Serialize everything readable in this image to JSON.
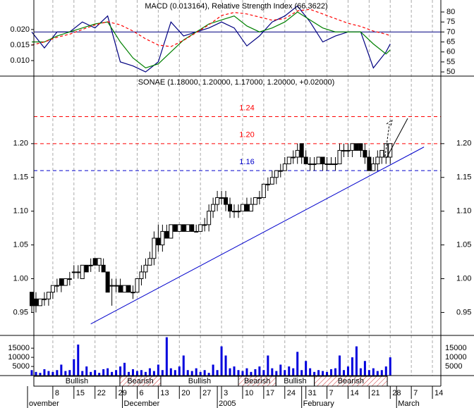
{
  "chart_data": [
    {
      "type": "line",
      "title": "MACD (0.013164), Relative Strength Index (66.3622)",
      "x": [
        0,
        3,
        6,
        9,
        12,
        15,
        18,
        21,
        24,
        27,
        30,
        33,
        36,
        39,
        42,
        45,
        48,
        51,
        54,
        57,
        60,
        63,
        66,
        69,
        72,
        75,
        78,
        81,
        84,
        85
      ],
      "ylim": [
        0.005,
        0.0295
      ],
      "yticks": [
        {
          "value": 0.01,
          "label": "0.010"
        },
        {
          "value": 0.015,
          "label": "0.015"
        },
        {
          "value": 0.02,
          "label": "0.020"
        }
      ],
      "y2lim": [
        47.9,
        86
      ],
      "y2ticks": [
        50,
        55,
        60,
        65,
        70,
        75,
        80
      ],
      "hline": {
        "value": 70,
        "axis": "y2",
        "color": "#000080"
      },
      "series": [
        {
          "color": "#000080",
          "axis": "y2",
          "dash": false,
          "values": [
            70,
            62,
            70,
            70,
            75,
            72,
            78,
            55,
            53,
            50,
            55,
            75,
            68,
            70,
            72,
            75,
            72,
            63,
            68,
            75,
            78,
            83,
            75,
            65,
            68,
            70,
            70,
            52,
            60,
            64
          ]
        },
        {
          "color": "#008000",
          "axis": "y2",
          "dash": false,
          "values": [
            65,
            65,
            68,
            70,
            72,
            74,
            75,
            65,
            57,
            52,
            54,
            60,
            66,
            70,
            74,
            76,
            78,
            73,
            70,
            72,
            75,
            80,
            76,
            72,
            70,
            70,
            70,
            64,
            59,
            61
          ]
        },
        {
          "color": "#ff0000",
          "axis": "y",
          "dash": true,
          "values": [
            0.015,
            0.016,
            0.0175,
            0.0185,
            0.02,
            0.0215,
            0.0225,
            0.0215,
            0.0195,
            0.017,
            0.015,
            0.0145,
            0.0165,
            0.019,
            0.0215,
            0.0245,
            0.0255,
            0.025,
            0.024,
            0.023,
            0.0235,
            0.026,
            0.0265,
            0.025,
            0.0235,
            0.022,
            0.021,
            0.0195,
            0.0185,
            0.018
          ]
        }
      ]
    },
    {
      "type": "candlestick",
      "title": "SONAE (1.18000, 1.20000, 1.17000, 1.20000, +0.02000)",
      "xlim": [
        0,
        97
      ],
      "xticks": [
        {
          "value": 5,
          "label": "8"
        },
        {
          "value": 10,
          "label": "15"
        },
        {
          "value": 15,
          "label": "22"
        },
        {
          "value": 20,
          "label": "29"
        },
        {
          "value": 25,
          "label": "6"
        },
        {
          "value": 30,
          "label": "13"
        },
        {
          "value": 35,
          "label": "20"
        },
        {
          "value": 40,
          "label": "27"
        },
        {
          "value": 45,
          "label": "3"
        },
        {
          "value": 50,
          "label": "10"
        },
        {
          "value": 55,
          "label": "17"
        },
        {
          "value": 60,
          "label": "24"
        },
        {
          "value": 65,
          "label": "31"
        },
        {
          "value": 70,
          "label": "7"
        },
        {
          "value": 75,
          "label": "14"
        },
        {
          "value": 80,
          "label": "21"
        },
        {
          "value": 85,
          "label": "28"
        },
        {
          "value": 90,
          "label": "7"
        },
        {
          "value": 95,
          "label": "14"
        }
      ],
      "x_groups": [
        {
          "value": -1,
          "label": "ovember"
        },
        {
          "value": 21.5,
          "label": "December"
        },
        {
          "value": 44,
          "label": "2005"
        },
        {
          "value": 64,
          "label": "February"
        },
        {
          "value": 86.5,
          "label": "March"
        }
      ],
      "ylim": [
        0.916,
        1.3
      ],
      "yticks": [
        0.95,
        {
          "value": 1.0,
          "label": "1.00"
        },
        1.05,
        {
          "value": 1.1,
          "label": "1.10"
        },
        1.15,
        {
          "value": 1.2,
          "label": "1.20"
        }
      ],
      "levels": [
        {
          "value": 1.24,
          "label": "1.24",
          "color": "#ff0000"
        },
        {
          "value": 1.2,
          "label": "1.20",
          "color": "#ff0000"
        },
        {
          "value": 1.16,
          "label": "1.16",
          "color": "#0000cc"
        }
      ],
      "trendline": {
        "x": [
          14,
          93
        ],
        "y": [
          0.933,
          1.195
        ],
        "color": "#0000cc"
      },
      "signals": [
        {
          "label": "Bullish",
          "start": 0.5,
          "end": 20.9,
          "color": "#ffffff"
        },
        {
          "label": "Bearish",
          "start": 20.9,
          "end": 30.6,
          "color": "#d03030"
        },
        {
          "label": "Bullish",
          "start": 30.6,
          "end": 49,
          "color": "#ffffff"
        },
        {
          "label": "Bearish",
          "start": 49,
          "end": 57.9,
          "color": "#d03030"
        },
        {
          "label": "Bullish",
          "start": 57.9,
          "end": 67,
          "color": "#ffffff"
        },
        {
          "label": "Bearish",
          "start": 67,
          "end": 84.3,
          "color": "#d03030"
        }
      ],
      "ohlc": [
        [
          0.98,
          0.98,
          0.95,
          0.96
        ],
        [
          0.97,
          0.98,
          0.95,
          0.96
        ],
        [
          0.96,
          0.97,
          0.96,
          0.97
        ],
        [
          0.97,
          0.98,
          0.96,
          0.97
        ],
        [
          0.97,
          0.98,
          0.96,
          0.98
        ],
        [
          0.98,
          0.99,
          0.97,
          0.99
        ],
        [
          0.99,
          1.0,
          0.98,
          0.99
        ],
        [
          1.0,
          1.0,
          0.98,
          0.99
        ],
        [
          0.99,
          1.0,
          0.99,
          1.0
        ],
        [
          1.0,
          1.01,
          0.99,
          1.0
        ],
        [
          1.01,
          1.02,
          1.0,
          1.01
        ],
        [
          1.01,
          1.02,
          1.0,
          1.01
        ],
        [
          1.0,
          1.02,
          1.0,
          1.02
        ],
        [
          1.02,
          1.02,
          1.01,
          1.01
        ],
        [
          1.02,
          1.03,
          1.01,
          1.02
        ],
        [
          1.03,
          1.03,
          1.02,
          1.02
        ],
        [
          1.02,
          1.03,
          1.01,
          1.03
        ],
        [
          1.02,
          1.03,
          1.01,
          1.01
        ],
        [
          1.01,
          1.01,
          0.98,
          0.98
        ],
        [
          0.99,
          1.0,
          0.96,
          0.99
        ],
        [
          0.99,
          1.0,
          0.98,
          0.99
        ],
        [
          0.99,
          1.0,
          0.98,
          0.98
        ],
        [
          0.98,
          0.99,
          0.98,
          0.99
        ],
        [
          0.99,
          0.99,
          0.98,
          0.98
        ],
        [
          0.98,
          0.99,
          0.97,
          0.98
        ],
        [
          0.98,
          1.0,
          0.98,
          1.0
        ],
        [
          1.0,
          1.02,
          0.99,
          1.01
        ],
        [
          1.01,
          1.03,
          1.0,
          1.02
        ],
        [
          1.02,
          1.04,
          1.02,
          1.03
        ],
        [
          1.03,
          1.07,
          1.02,
          1.06
        ],
        [
          1.06,
          1.08,
          1.04,
          1.05
        ],
        [
          1.05,
          1.08,
          1.04,
          1.07
        ],
        [
          1.07,
          1.08,
          1.06,
          1.06
        ],
        [
          1.06,
          1.08,
          1.06,
          1.08
        ],
        [
          1.08,
          1.08,
          1.07,
          1.07
        ],
        [
          1.07,
          1.08,
          1.07,
          1.08
        ],
        [
          1.08,
          1.08,
          1.07,
          1.07
        ],
        [
          1.07,
          1.08,
          1.07,
          1.08
        ],
        [
          1.08,
          1.08,
          1.07,
          1.07
        ],
        [
          1.07,
          1.08,
          1.07,
          1.07
        ],
        [
          1.07,
          1.08,
          1.07,
          1.08
        ],
        [
          1.08,
          1.09,
          1.07,
          1.08
        ],
        [
          1.08,
          1.11,
          1.07,
          1.1
        ],
        [
          1.1,
          1.12,
          1.09,
          1.11
        ],
        [
          1.11,
          1.13,
          1.1,
          1.12
        ],
        [
          1.12,
          1.13,
          1.11,
          1.12
        ],
        [
          1.12,
          1.13,
          1.1,
          1.11
        ],
        [
          1.11,
          1.12,
          1.09,
          1.1
        ],
        [
          1.1,
          1.11,
          1.09,
          1.1
        ],
        [
          1.1,
          1.11,
          1.09,
          1.1
        ],
        [
          1.1,
          1.11,
          1.1,
          1.11
        ],
        [
          1.11,
          1.12,
          1.1,
          1.1
        ],
        [
          1.1,
          1.12,
          1.1,
          1.11
        ],
        [
          1.11,
          1.12,
          1.11,
          1.12
        ],
        [
          1.12,
          1.13,
          1.11,
          1.12
        ],
        [
          1.12,
          1.14,
          1.12,
          1.14
        ],
        [
          1.14,
          1.15,
          1.13,
          1.14
        ],
        [
          1.14,
          1.16,
          1.14,
          1.15
        ],
        [
          1.15,
          1.16,
          1.14,
          1.16
        ],
        [
          1.16,
          1.17,
          1.15,
          1.16
        ],
        [
          1.16,
          1.18,
          1.16,
          1.17
        ],
        [
          1.17,
          1.18,
          1.17,
          1.18
        ],
        [
          1.18,
          1.19,
          1.17,
          1.18
        ],
        [
          1.18,
          1.2,
          1.17,
          1.19
        ],
        [
          1.2,
          1.2,
          1.17,
          1.18
        ],
        [
          1.18,
          1.19,
          1.17,
          1.17
        ],
        [
          1.17,
          1.18,
          1.16,
          1.17
        ],
        [
          1.17,
          1.18,
          1.16,
          1.17
        ],
        [
          1.17,
          1.18,
          1.17,
          1.18
        ],
        [
          1.18,
          1.18,
          1.16,
          1.17
        ],
        [
          1.17,
          1.18,
          1.16,
          1.17
        ],
        [
          1.17,
          1.18,
          1.17,
          1.17
        ],
        [
          1.17,
          1.18,
          1.16,
          1.17
        ],
        [
          1.17,
          1.2,
          1.17,
          1.19
        ],
        [
          1.19,
          1.2,
          1.18,
          1.19
        ],
        [
          1.19,
          1.2,
          1.18,
          1.19
        ],
        [
          1.19,
          1.2,
          1.18,
          1.2
        ],
        [
          1.2,
          1.2,
          1.19,
          1.19
        ],
        [
          1.2,
          1.2,
          1.18,
          1.19
        ],
        [
          1.19,
          1.2,
          1.17,
          1.18
        ],
        [
          1.18,
          1.19,
          1.16,
          1.16
        ],
        [
          1.16,
          1.18,
          1.16,
          1.17
        ],
        [
          1.17,
          1.19,
          1.16,
          1.18
        ],
        [
          1.18,
          1.19,
          1.17,
          1.19
        ],
        [
          1.18,
          1.2,
          1.17,
          1.2
        ],
        [
          1.18,
          1.2,
          1.17,
          1.2
        ]
      ]
    },
    {
      "type": "bar",
      "color": "#0000dd",
      "ylim": [
        0,
        22000
      ],
      "yticks": [
        5000,
        10000,
        15000
      ],
      "values": [
        3000,
        2000,
        1500,
        3500,
        2500,
        2000,
        3000,
        6000,
        2500,
        3000,
        9000,
        17000,
        2500,
        5000,
        2000,
        3000,
        1500,
        3500,
        4000,
        2000,
        3000,
        5000,
        7000,
        2000,
        3500,
        2500,
        3000,
        2000,
        4000,
        2500,
        6000,
        3000,
        21000,
        4000,
        3000,
        5000,
        11000,
        3000,
        2500,
        4000,
        2000,
        3000,
        1500,
        6000,
        3000,
        16000,
        11000,
        4000,
        5000,
        3000,
        2500,
        4000,
        2000,
        3500,
        5000,
        3000,
        11000,
        4000,
        2500,
        6000,
        3000,
        5000,
        4000,
        13000,
        3000,
        8000,
        4000,
        2000,
        3000,
        2500,
        2000,
        3500,
        4000,
        11000,
        3000,
        5000,
        10000,
        16000,
        4000,
        8000,
        3000,
        4000,
        2500,
        3000,
        5000,
        10000
      ]
    }
  ]
}
